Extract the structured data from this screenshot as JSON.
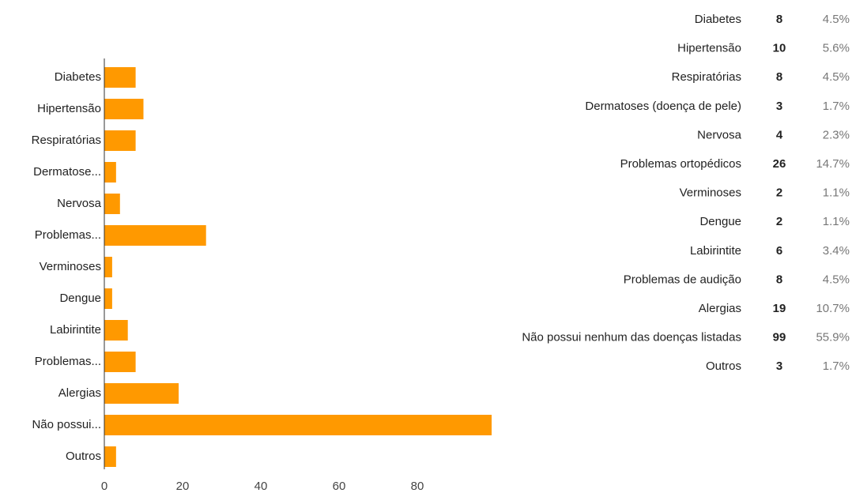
{
  "chart_data": {
    "type": "bar",
    "orientation": "horizontal",
    "categories": [
      "Diabetes",
      "Hipertensão",
      "Respiratórias",
      "Dermatose...",
      "Nervosa",
      "Problemas...",
      "Verminoses",
      "Dengue",
      "Labirintite",
      "Problemas...",
      "Alergias",
      "Não possui...",
      "Outros"
    ],
    "values": [
      8,
      10,
      8,
      3,
      4,
      26,
      2,
      2,
      6,
      8,
      19,
      99,
      3
    ],
    "color": "#ff9900",
    "xlim": [
      0,
      100
    ],
    "xticks": [
      0,
      20,
      40,
      60,
      80
    ]
  },
  "table": {
    "rows": [
      [
        "Diabetes",
        8,
        "4.5%"
      ],
      [
        "Hipertensão",
        10,
        "5.6%"
      ],
      [
        "Respiratórias",
        8,
        "4.5%"
      ],
      [
        "Dermatoses (doença de pele)",
        3,
        "1.7%"
      ],
      [
        "Nervosa",
        4,
        "2.3%"
      ],
      [
        "Problemas ortopédicos",
        26,
        "14.7%"
      ],
      [
        "Verminoses",
        2,
        "1.1%"
      ],
      [
        "Dengue",
        2,
        "1.1%"
      ],
      [
        "Labirintite",
        6,
        "3.4%"
      ],
      [
        "Problemas de audição",
        8,
        "4.5%"
      ],
      [
        "Alergias",
        19,
        "10.7%"
      ],
      [
        "Não possui nenhum das doenças listadas",
        99,
        "55.9%"
      ],
      [
        "Outros",
        3,
        "1.7%"
      ]
    ]
  }
}
